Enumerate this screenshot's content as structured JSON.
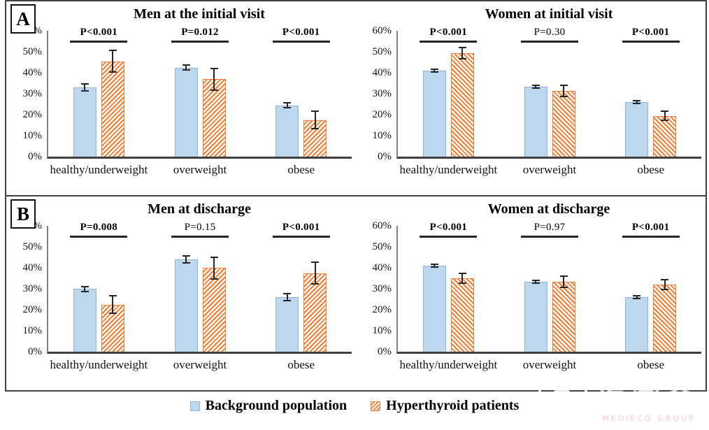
{
  "panels": [
    {
      "label": "A"
    },
    {
      "label": "B"
    }
  ],
  "y_axis_ticks": [
    "60%",
    "50%",
    "40%",
    "30%",
    "20%",
    "10%",
    "0%"
  ],
  "legend": {
    "items": [
      {
        "label": "Background population",
        "swatch": "blue"
      },
      {
        "label": "Hyperthyroid patients",
        "swatch": "orange"
      }
    ]
  },
  "watermark": {
    "title": "医咖会",
    "subtitle": "MEDIECO GROUP"
  },
  "colors": {
    "background_series_fill": "#BDD7EE",
    "background_series_border": "#8EB4DC",
    "hyperthyroid_series": "#ED7D31",
    "error_bar": "#262626",
    "axis": "#404040"
  },
  "chart_data": [
    {
      "type": "bar",
      "panel": "A",
      "title": "Men at the initial visit",
      "categories": [
        "healthy/underweight",
        "overweight",
        "obese"
      ],
      "ylim": [
        0,
        60
      ],
      "ylabel": "%",
      "grid": false,
      "hatch": "forward",
      "series": [
        {
          "name": "Background population",
          "values": [
            33,
            42.5,
            24.5
          ],
          "errors": [
            2,
            1.5,
            1.5
          ]
        },
        {
          "name": "Hyperthyroid patients",
          "values": [
            45.5,
            37,
            17.5
          ],
          "errors": [
            5.5,
            5.5,
            4.5
          ]
        }
      ],
      "p_values": [
        {
          "label": "P<0.001",
          "bold": true
        },
        {
          "label": "P=0.012",
          "bold": true
        },
        {
          "label": "P<0.001",
          "bold": true
        }
      ]
    },
    {
      "type": "bar",
      "panel": "A",
      "title": "Women at initial visit",
      "categories": [
        "healthy/underweight",
        "overweight",
        "obese"
      ],
      "ylim": [
        0,
        60
      ],
      "ylabel": "%",
      "grid": false,
      "hatch": "back",
      "series": [
        {
          "name": "Background population",
          "values": [
            41,
            33.5,
            26
          ],
          "errors": [
            1,
            1,
            1
          ]
        },
        {
          "name": "Hyperthyroid patients",
          "values": [
            49.5,
            31.5,
            19.5
          ],
          "errors": [
            3,
            3,
            2.5
          ]
        }
      ],
      "p_values": [
        {
          "label": "P<0.001",
          "bold": true
        },
        {
          "label": "P=0.30",
          "bold": false
        },
        {
          "label": "P<0.001",
          "bold": true
        }
      ]
    },
    {
      "type": "bar",
      "panel": "B",
      "title": "Men at discharge",
      "categories": [
        "healthy/underweight",
        "overweight",
        "obese"
      ],
      "ylim": [
        0,
        60
      ],
      "ylabel": "%",
      "grid": false,
      "hatch": "forward",
      "series": [
        {
          "name": "Background population",
          "values": [
            30,
            44,
            26
          ],
          "errors": [
            1.5,
            2,
            2
          ]
        },
        {
          "name": "Hyperthyroid patients",
          "values": [
            22.5,
            40,
            37.5
          ],
          "errors": [
            4.5,
            5.5,
            5.5
          ]
        }
      ],
      "p_values": [
        {
          "label": "P=0.008",
          "bold": true
        },
        {
          "label": "P=0.15",
          "bold": false
        },
        {
          "label": "P<0.001",
          "bold": true
        }
      ]
    },
    {
      "type": "bar",
      "panel": "B",
      "title": "Women at discharge",
      "categories": [
        "healthy/underweight",
        "overweight",
        "obese"
      ],
      "ylim": [
        0,
        60
      ],
      "ylabel": "%",
      "grid": false,
      "hatch": "back",
      "series": [
        {
          "name": "Background population",
          "values": [
            41,
            33.5,
            26
          ],
          "errors": [
            1,
            1,
            1
          ]
        },
        {
          "name": "Hyperthyroid patients",
          "values": [
            35,
            33.5,
            32
          ],
          "errors": [
            2.75,
            3,
            2.75
          ]
        }
      ],
      "p_values": [
        {
          "label": "P<0.001",
          "bold": true
        },
        {
          "label": "P=0.97",
          "bold": false
        },
        {
          "label": "P<0.001",
          "bold": true
        }
      ]
    }
  ]
}
